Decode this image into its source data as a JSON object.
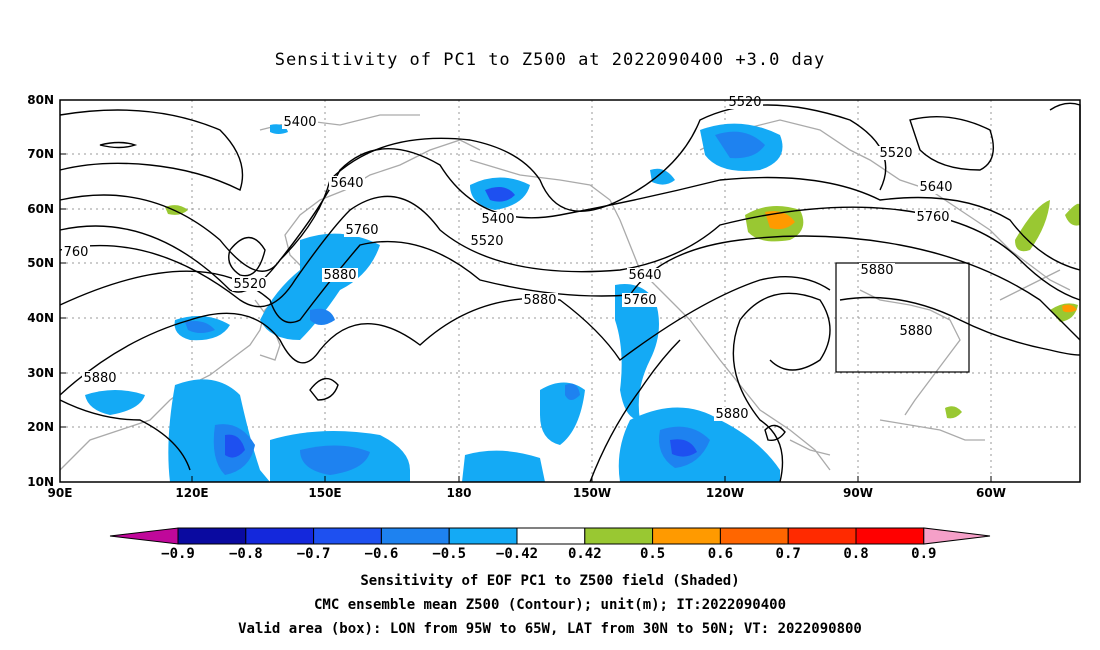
{
  "title": "Sensitivity of PC1 to Z500 at 2022090400 +3.0 day",
  "axes": {
    "lat_ticks": [
      "80N",
      "70N",
      "60N",
      "50N",
      "40N",
      "30N",
      "20N",
      "10N"
    ],
    "lon_ticks": [
      "90E",
      "120E",
      "150E",
      "180",
      "150W",
      "120W",
      "90W",
      "60W"
    ]
  },
  "contour_labels": [
    {
      "text": "5400"
    },
    {
      "text": "5520"
    },
    {
      "text": "5520"
    },
    {
      "text": "5640"
    },
    {
      "text": "5760"
    },
    {
      "text": "5880"
    },
    {
      "text": "5400"
    },
    {
      "text": "5520"
    },
    {
      "text": "5640"
    },
    {
      "text": "5760"
    },
    {
      "text": "5880"
    },
    {
      "text": "5880"
    },
    {
      "text": "5880"
    },
    {
      "text": "5880"
    },
    {
      "text": "5520"
    },
    {
      "text": "5640"
    },
    {
      "text": "5760"
    },
    {
      "text": "5880"
    },
    {
      "text": "760"
    }
  ],
  "colorbar": {
    "labels": [
      "-0.9",
      "-0.8",
      "-0.7",
      "-0.6",
      "-0.5",
      "-0.42",
      "0.42",
      "0.5",
      "0.6",
      "0.7",
      "0.8",
      "0.9"
    ],
    "colors": [
      "#0a0aa0",
      "#1428dc",
      "#1e50f0",
      "#1e82f0",
      "#14aaf5",
      "#ffffff",
      "#99c832",
      "#ff9a00",
      "#ff6600",
      "#ff2a00",
      "#ff0000"
    ],
    "end_low": "#c0089a",
    "end_high": "#f5a0c8"
  },
  "captions": [
    "Sensitivity of EOF PC1 to Z500 field (Shaded)",
    "CMC ensemble mean Z500 (Contour); unit(m); IT:2022090400",
    "Valid area (box): LON from 95W to 65W, LAT from 30N to 50N; VT: 2022090800"
  ],
  "colors": {
    "contour": "#000000",
    "coastline": "#aaaaaa",
    "grid": "#999999",
    "box": "#000000"
  }
}
